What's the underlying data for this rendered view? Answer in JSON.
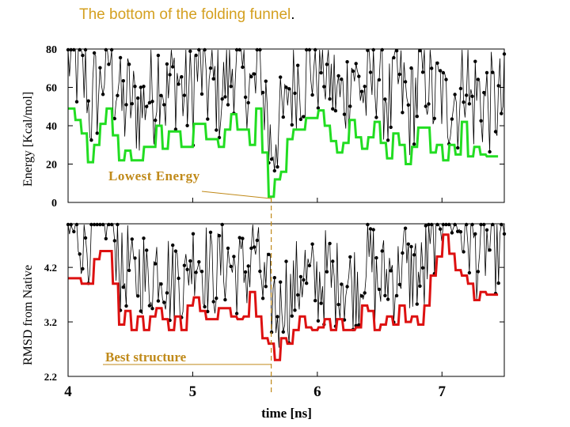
{
  "title": {
    "text": "The bottom of the folding funnel",
    "suffix": "."
  },
  "colors": {
    "title": "#d4a020",
    "annotation": "#c08a1a",
    "min_envelope": "#22dd22",
    "rmsd_min_envelope": "#dd1111",
    "trace": "#000000",
    "guide": "#c08a1a"
  },
  "chart_data": [
    {
      "type": "line",
      "name": "energy-panel",
      "ylabel": "Energy [Kcal/mol]",
      "ylim": [
        0,
        80
      ],
      "xlim": [
        4,
        7.5
      ],
      "yticks": [
        "0",
        "20",
        "40",
        "60",
        "80"
      ],
      "annotation": {
        "text": "Lowest Energy",
        "at": [
          5.63,
          2
        ]
      },
      "series": [
        {
          "name": "instantaneous energy (dots)",
          "color": "#000000"
        },
        {
          "name": "running minimum",
          "color": "#22dd22",
          "x": [
            4.0,
            4.05,
            4.06,
            4.1,
            4.11,
            4.15,
            4.16,
            4.2,
            4.21,
            4.25,
            4.26,
            4.3,
            4.31,
            4.35,
            4.36,
            4.4,
            4.41,
            4.45,
            4.46,
            4.5,
            4.51,
            4.6,
            4.61,
            4.7,
            4.71,
            4.75,
            4.76,
            4.8,
            4.81,
            4.9,
            4.91,
            5.0,
            5.01,
            5.1,
            5.11,
            5.2,
            5.21,
            5.25,
            5.26,
            5.3,
            5.31,
            5.35,
            5.36,
            5.45,
            5.46,
            5.5,
            5.51,
            5.55,
            5.56,
            5.6,
            5.61,
            5.65,
            5.66,
            5.7,
            5.71,
            5.75,
            5.76,
            5.8,
            5.81,
            5.9,
            5.91,
            6.0,
            6.01,
            6.05,
            6.06,
            6.1,
            6.11,
            6.15,
            6.16,
            6.2,
            6.21,
            6.25,
            6.26,
            6.3,
            6.31,
            6.35,
            6.36,
            6.4,
            6.41,
            6.45,
            6.46,
            6.5,
            6.51,
            6.55,
            6.56,
            6.6,
            6.61,
            6.65,
            6.66,
            6.7,
            6.71,
            6.75,
            6.76,
            6.8,
            6.81,
            6.9,
            6.91,
            6.95,
            6.96,
            7.0,
            7.01,
            7.05,
            7.06,
            7.1,
            7.11,
            7.15,
            7.16,
            7.2,
            7.21,
            7.25,
            7.26,
            7.3,
            7.31,
            7.35,
            7.36,
            7.45
          ],
          "y": [
            49,
            49,
            43,
            43,
            36,
            36,
            21,
            21,
            30,
            30,
            41,
            41,
            49,
            49,
            35,
            35,
            22,
            22,
            27,
            27,
            22,
            22,
            29,
            29,
            40,
            40,
            28,
            28,
            37,
            37,
            29,
            29,
            41,
            41,
            33,
            33,
            29,
            29,
            38,
            38,
            46,
            46,
            38,
            38,
            30,
            30,
            49,
            49,
            26,
            26,
            3,
            3,
            12,
            12,
            16,
            16,
            33,
            33,
            38,
            38,
            44,
            44,
            48,
            48,
            40,
            40,
            32,
            32,
            26,
            26,
            31,
            31,
            43,
            43,
            34,
            34,
            28,
            28,
            34,
            34,
            42,
            42,
            31,
            31,
            23,
            23,
            36,
            36,
            30,
            30,
            20,
            20,
            29,
            29,
            39,
            39,
            26,
            26,
            30,
            30,
            22,
            22,
            30,
            30,
            25,
            25,
            42,
            42,
            24,
            24,
            29,
            29,
            25,
            25,
            24,
            24
          ]
        }
      ]
    },
    {
      "type": "line",
      "name": "rmsd-panel",
      "ylabel": "RMSD from Native",
      "xlabel": "time [ns]",
      "ylim": [
        2.2,
        5.0
      ],
      "xlim": [
        4,
        7.5
      ],
      "yticks": [
        "2.2",
        "3.2",
        "4.2"
      ],
      "xticks": [
        "4",
        "5",
        "6",
        "7"
      ],
      "annotation": {
        "text": "Best structure",
        "at": [
          5.63,
          2.42
        ]
      },
      "series": [
        {
          "name": "instantaneous RMSD (dots)",
          "color": "#000000"
        },
        {
          "name": "running minimum",
          "color": "#dd1111",
          "x": [
            4.0,
            4.1,
            4.11,
            4.2,
            4.21,
            4.25,
            4.26,
            4.35,
            4.36,
            4.4,
            4.41,
            4.45,
            4.46,
            4.5,
            4.51,
            4.55,
            4.56,
            4.6,
            4.61,
            4.65,
            4.66,
            4.7,
            4.71,
            4.75,
            4.76,
            4.8,
            4.81,
            4.85,
            4.86,
            4.9,
            4.91,
            4.95,
            4.96,
            5.0,
            5.01,
            5.05,
            5.06,
            5.1,
            5.11,
            5.2,
            5.21,
            5.3,
            5.31,
            5.35,
            5.36,
            5.4,
            5.41,
            5.45,
            5.46,
            5.5,
            5.51,
            5.55,
            5.56,
            5.6,
            5.61,
            5.65,
            5.66,
            5.7,
            5.71,
            5.75,
            5.76,
            5.8,
            5.81,
            5.85,
            5.86,
            5.9,
            5.91,
            5.95,
            5.96,
            6.0,
            6.01,
            6.05,
            6.06,
            6.1,
            6.11,
            6.15,
            6.16,
            6.2,
            6.21,
            6.3,
            6.31,
            6.35,
            6.36,
            6.4,
            6.41,
            6.45,
            6.46,
            6.5,
            6.51,
            6.55,
            6.56,
            6.6,
            6.61,
            6.65,
            6.66,
            6.7,
            6.71,
            6.75,
            6.76,
            6.8,
            6.81,
            6.85,
            6.86,
            6.9,
            6.91,
            6.95,
            6.96,
            7.0,
            7.01,
            7.05,
            7.06,
            7.1,
            7.11,
            7.15,
            7.16,
            7.2,
            7.21,
            7.25,
            7.26,
            7.3,
            7.31,
            7.35,
            7.36,
            7.45
          ],
          "y": [
            4.0,
            4.0,
            3.9,
            3.9,
            4.35,
            4.35,
            4.5,
            4.5,
            3.9,
            3.9,
            3.15,
            3.15,
            3.4,
            3.4,
            3.05,
            3.05,
            3.3,
            3.3,
            3.05,
            3.05,
            3.3,
            3.3,
            3.45,
            3.45,
            3.25,
            3.25,
            3.05,
            3.05,
            3.3,
            3.3,
            3.05,
            3.05,
            3.5,
            3.5,
            3.65,
            3.65,
            3.4,
            3.4,
            3.25,
            3.25,
            3.45,
            3.45,
            3.3,
            3.3,
            3.25,
            3.25,
            3.3,
            3.3,
            3.75,
            3.75,
            3.3,
            3.3,
            2.9,
            2.9,
            2.8,
            2.8,
            2.5,
            2.5,
            2.9,
            2.9,
            2.8,
            2.8,
            3.05,
            3.05,
            3.3,
            3.3,
            3.1,
            3.1,
            3.05,
            3.05,
            3.1,
            3.1,
            3.25,
            3.25,
            3.05,
            3.05,
            3.25,
            3.25,
            3.05,
            3.05,
            3.1,
            3.1,
            3.5,
            3.5,
            3.4,
            3.4,
            3.05,
            3.05,
            3.15,
            3.15,
            3.3,
            3.3,
            3.15,
            3.15,
            3.5,
            3.5,
            3.2,
            3.2,
            3.3,
            3.3,
            3.15,
            3.15,
            3.5,
            3.5,
            4.05,
            4.05,
            4.4,
            4.4,
            4.8,
            4.8,
            4.45,
            4.45,
            4.15,
            4.15,
            4.05,
            4.05,
            3.9,
            3.9,
            3.6,
            3.6,
            3.75,
            3.75,
            3.7,
            3.7
          ]
        }
      ]
    }
  ]
}
